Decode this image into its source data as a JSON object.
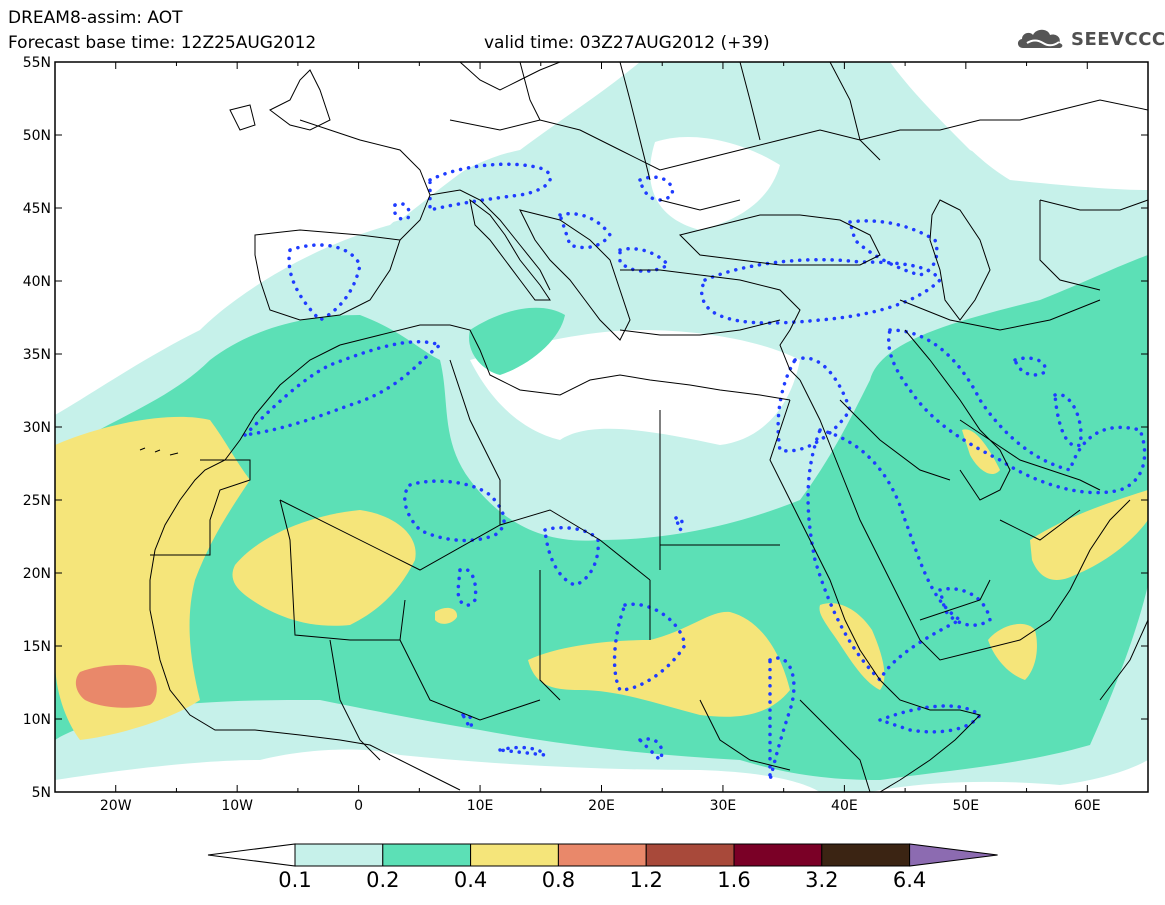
{
  "header": {
    "title": "DREAM8-assim: AOT",
    "forecast_base": "Forecast base time: 12Z25AUG2012",
    "valid_time": "valid time: 03Z27AUG2012 (+39)",
    "logo_text": "SEEVCCC",
    "logo_icon": "cloud-icon"
  },
  "axes": {
    "lon_labels": [
      "20W",
      "10W",
      "0",
      "10E",
      "20E",
      "30E",
      "40E",
      "50E",
      "60E"
    ],
    "lat_labels": [
      "55N",
      "50N",
      "45N",
      "40N",
      "35N",
      "30N",
      "25N",
      "20N",
      "15N",
      "10N",
      "5N"
    ]
  },
  "legend": {
    "labels": [
      "0.1",
      "0.2",
      "0.4",
      "0.8",
      "1.2",
      "1.6",
      "3.2",
      "6.4"
    ],
    "colors": [
      "#c6f1ea",
      "#5ce0b6",
      "#f5e57a",
      "#e9886a",
      "#a8493a",
      "#7a0026",
      "#3b2413",
      "#8c6bb1"
    ]
  },
  "colors": {
    "land_border": "#000000",
    "contour_dots": "#1f3cff",
    "background": "#ffffff"
  }
}
